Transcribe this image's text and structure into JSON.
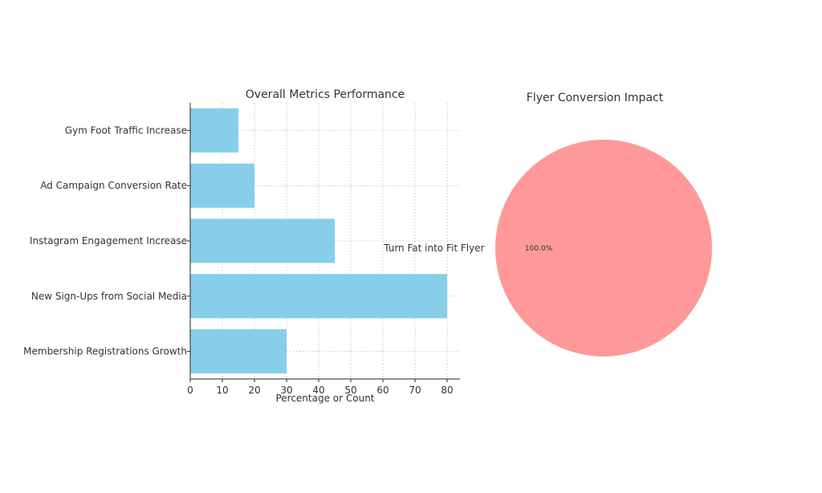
{
  "chart_data": [
    {
      "type": "bar",
      "orientation": "horizontal",
      "title": "Overall Metrics Performance",
      "xlabel": "Percentage or Count",
      "ylabel": "",
      "categories": [
        "Gym Foot Traffic Increase",
        "Ad Campaign Conversion Rate",
        "Instagram Engagement Increase",
        "New Sign-Ups from Social Media",
        "Membership Registrations Growth"
      ],
      "values": [
        15,
        20,
        45,
        80,
        30
      ],
      "xlim": [
        0,
        84
      ],
      "xticks": [
        "0",
        "10",
        "20",
        "30",
        "40",
        "50",
        "60",
        "70",
        "80"
      ],
      "grid": true,
      "bar_color": "#87ceeb"
    },
    {
      "type": "pie",
      "title": "Flyer Conversion Impact",
      "labels": [
        "Turn Fat into Fit Flyer"
      ],
      "values": [
        100
      ],
      "percent_labels": [
        "100.0%"
      ],
      "colors": [
        "#ff9999"
      ]
    }
  ]
}
